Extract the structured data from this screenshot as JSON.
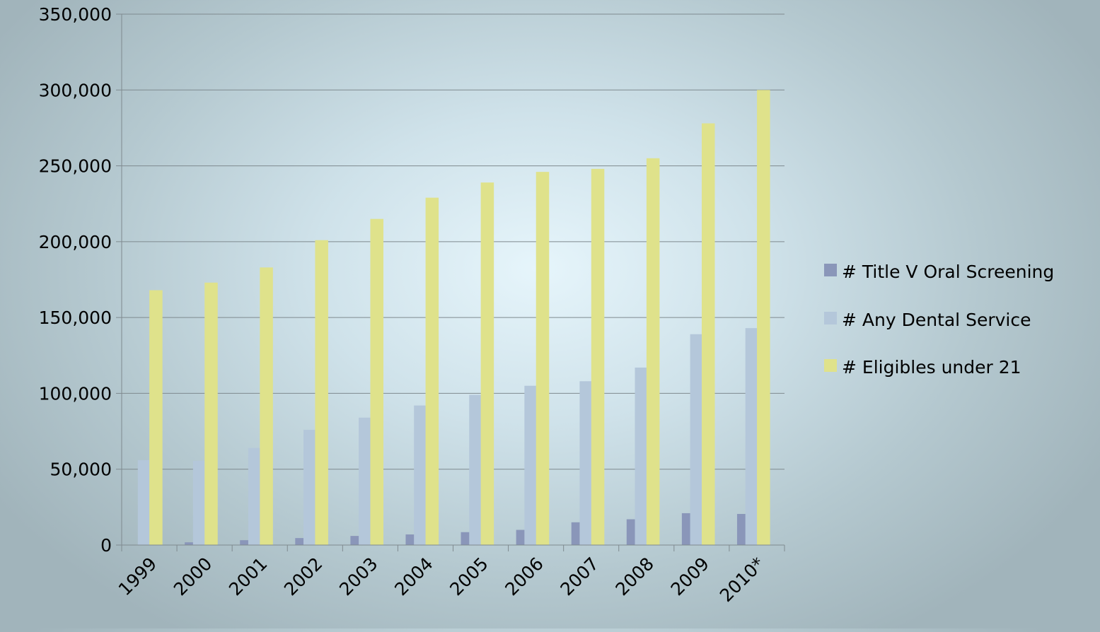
{
  "chart_data": {
    "type": "bar",
    "title": "",
    "xlabel": "",
    "ylabel": "",
    "categories": [
      "1999",
      "2000",
      "2001",
      "2002",
      "2003",
      "2004",
      "2005",
      "2006",
      "2007",
      "2008",
      "2009",
      "2010*"
    ],
    "series": [
      {
        "name": "# Title V Oral Screening",
        "color": "#8a96b9",
        "values": [
          0,
          1800,
          3200,
          4600,
          6000,
          7000,
          8500,
          10000,
          15000,
          17000,
          21000,
          20500
        ]
      },
      {
        "name": "# Any Dental Service",
        "color": "#b4c7da",
        "values": [
          56000,
          55500,
          64000,
          76000,
          84000,
          92000,
          99000,
          105000,
          108000,
          117000,
          139000,
          143000
        ]
      },
      {
        "name": "# Eligibles under 21",
        "color": "#dfe28b",
        "values": [
          168000,
          173000,
          183000,
          201000,
          215000,
          229000,
          239000,
          246000,
          248000,
          255000,
          278000,
          300000
        ]
      }
    ],
    "y_ticks": [
      "0",
      "50,000",
      "100,000",
      "150,000",
      "200,000",
      "250,000",
      "300,000",
      "350,000"
    ],
    "ylim": [
      0,
      350000
    ],
    "grid": true,
    "legend_position": "right"
  }
}
